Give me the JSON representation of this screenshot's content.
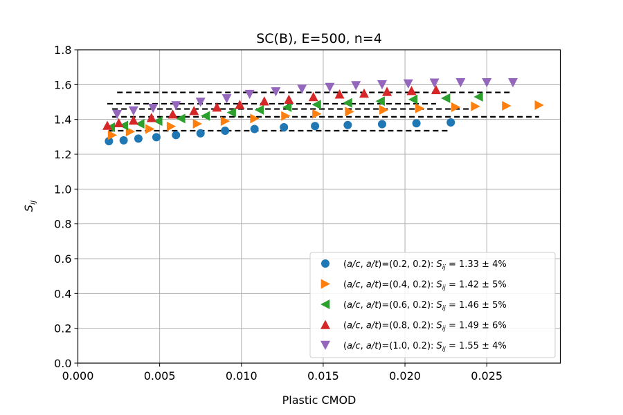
{
  "chart_data": {
    "type": "scatter",
    "title": "SC(B), E=500, n=4",
    "xlabel": "Plastic CMOD",
    "ylabel": "S_ij",
    "xlim": [
      0.0,
      0.0295
    ],
    "ylim": [
      0.0,
      1.8
    ],
    "xticks": [
      0.0,
      0.005,
      0.01,
      0.015,
      0.02,
      0.025
    ],
    "xtick_labels": [
      "0.000",
      "0.005",
      "0.010",
      "0.015",
      "0.020",
      "0.025"
    ],
    "yticks": [
      0.0,
      0.2,
      0.4,
      0.6,
      0.8,
      1.0,
      1.2,
      1.4,
      1.6,
      1.8
    ],
    "ytick_labels": [
      "0.0",
      "0.2",
      "0.4",
      "0.6",
      "0.8",
      "1.0",
      "1.2",
      "1.4",
      "1.6",
      "1.8"
    ],
    "grid": true,
    "legend_position": "lower-right",
    "series": [
      {
        "name": "(a/c, a/t)=(0.2, 0.2): S_ij = 1.33 ± 4%",
        "legend": {
          "prefix": "(",
          "ac": "a/c",
          "comma": ", ",
          "at": "a/t",
          "params": ")=(0.2, 0.2): ",
          "S": "S",
          "sub": "ij",
          "result": " = 1.33 ± 4%"
        },
        "marker": "circle",
        "color": "#1f77b4",
        "x": [
          0.0019,
          0.0028,
          0.0037,
          0.0048,
          0.006,
          0.0075,
          0.009,
          0.0108,
          0.0126,
          0.0145,
          0.0165,
          0.0186,
          0.0207,
          0.0228
        ],
        "y": [
          1.275,
          1.28,
          1.29,
          1.298,
          1.31,
          1.32,
          1.335,
          1.345,
          1.355,
          1.362,
          1.368,
          1.373,
          1.378,
          1.383
        ],
        "fit": {
          "y": 1.335,
          "x_range": [
            0.0019,
            0.0228
          ]
        }
      },
      {
        "name": "(a/c, a/t)=(0.4, 0.2): S_ij = 1.42 ± 5%",
        "legend": {
          "prefix": "(",
          "ac": "a/c",
          "comma": ", ",
          "at": "a/t",
          "params": ")=(0.4, 0.2): ",
          "S": "S",
          "sub": "ij",
          "result": " = 1.42 ± 5%"
        },
        "marker": "triangle-right",
        "color": "#ff7f0e",
        "x": [
          0.0021,
          0.0032,
          0.0044,
          0.0057,
          0.0073,
          0.009,
          0.0108,
          0.0127,
          0.0146,
          0.0166,
          0.0187,
          0.0209,
          0.0231,
          0.0243,
          0.0262,
          0.0282
        ],
        "y": [
          1.31,
          1.33,
          1.345,
          1.36,
          1.375,
          1.39,
          1.405,
          1.42,
          1.432,
          1.445,
          1.455,
          1.463,
          1.47,
          1.475,
          1.478,
          1.482
        ],
        "fit": {
          "y": 1.415,
          "x_range": [
            0.0021,
            0.0282
          ]
        }
      },
      {
        "name": "(a/c, a/t)=(0.6, 0.2): S_ij = 1.46 ± 5%",
        "legend": {
          "prefix": "(",
          "ac": "a/c",
          "comma": ", ",
          "at": "a/t",
          "params": ")=(0.6, 0.2): ",
          "S": "S",
          "sub": "ij",
          "result": " = 1.46 ± 5%"
        },
        "marker": "triangle-left",
        "color": "#2ca02c",
        "x": [
          0.002,
          0.0028,
          0.0038,
          0.0049,
          0.0063,
          0.0078,
          0.0094,
          0.0111,
          0.0128,
          0.0146,
          0.0165,
          0.0185,
          0.0205,
          0.0225,
          0.0245
        ],
        "y": [
          1.355,
          1.365,
          1.375,
          1.39,
          1.405,
          1.42,
          1.44,
          1.455,
          1.47,
          1.485,
          1.495,
          1.505,
          1.515,
          1.522,
          1.53
        ],
        "fit": {
          "y": 1.46,
          "x_range": [
            0.0021,
            0.0241
          ]
        }
      },
      {
        "name": "(a/c, a/t)=(0.8, 0.2): S_ij = 1.49 ± 6%",
        "legend": {
          "prefix": "(",
          "ac": "a/c",
          "comma": ", ",
          "at": "a/t",
          "params": ")=(0.8, 0.2): ",
          "S": "S",
          "sub": "ij",
          "result": " = 1.49 ± 6%"
        },
        "marker": "triangle-up",
        "color": "#d62728",
        "x": [
          0.0018,
          0.0025,
          0.0034,
          0.0045,
          0.0058,
          0.0071,
          0.0085,
          0.0099,
          0.0114,
          0.0129,
          0.0144,
          0.016,
          0.0175,
          0.0189,
          0.0204,
          0.0219
        ],
        "y": [
          1.365,
          1.38,
          1.395,
          1.41,
          1.43,
          1.45,
          1.47,
          1.485,
          1.505,
          1.515,
          1.53,
          1.545,
          1.55,
          1.56,
          1.565,
          1.57
        ],
        "fit": {
          "y": 1.49,
          "x_range": [
            0.0018,
            0.0219
          ]
        }
      },
      {
        "name": "(a/c, a/t)=(1.0, 0.2): S_ij = 1.55 ± 4%",
        "legend": {
          "prefix": "(",
          "ac": "a/c",
          "comma": ", ",
          "at": "a/t",
          "params": ")=(1.0, 0.2): ",
          "S": "S",
          "sub": "ij",
          "result": " = 1.55 ± 4%"
        },
        "marker": "triangle-down",
        "color": "#9467bd",
        "x": [
          0.0024,
          0.0034,
          0.0046,
          0.006,
          0.0075,
          0.0091,
          0.0105,
          0.0121,
          0.0137,
          0.0154,
          0.017,
          0.0186,
          0.0202,
          0.0218,
          0.0234,
          0.025,
          0.0266
        ],
        "y": [
          1.43,
          1.45,
          1.465,
          1.48,
          1.5,
          1.52,
          1.545,
          1.56,
          1.575,
          1.585,
          1.595,
          1.6,
          1.605,
          1.61,
          1.612,
          1.612,
          1.612
        ],
        "fit": {
          "y": 1.555,
          "x_range": [
            0.0024,
            0.0266
          ]
        }
      }
    ]
  }
}
